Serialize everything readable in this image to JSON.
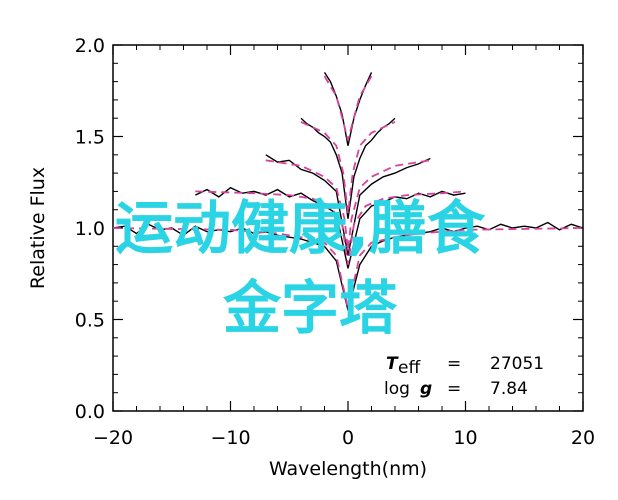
{
  "chart_data": {
    "type": "line",
    "title": "",
    "xlabel": "Wavelength(nm)",
    "ylabel": "Relative Flux",
    "xlim": [
      -20,
      20
    ],
    "ylim": [
      0.0,
      2.0
    ],
    "x_ticks": [
      "−20",
      "−10",
      "0",
      "10",
      "20"
    ],
    "y_ticks": [
      "0.0",
      "0.5",
      "1.0",
      "1.5",
      "2.0"
    ],
    "grid": false,
    "legend": "none",
    "series": [
      {
        "style": "black-solid",
        "segments": [
          {
            "x": [
              -20,
              -19,
              -18,
              -17,
              -16,
              -15,
              -14,
              -13,
              -12,
              -11,
              -10,
              -9,
              -8,
              -7,
              -6,
              -5,
              -4,
              -3,
              -2,
              -1,
              0,
              1,
              2,
              3,
              4,
              5,
              6,
              7,
              8,
              9,
              10,
              11,
              12,
              13,
              14,
              15,
              16,
              17,
              18,
              19,
              20
            ],
            "y": [
              1.0,
              1.01,
              0.97,
              1.02,
              0.99,
              1.0,
              0.96,
              1.01,
              0.98,
              0.99,
              0.98,
              1.0,
              0.97,
              0.98,
              0.96,
              0.95,
              0.94,
              0.92,
              0.9,
              0.82,
              0.55,
              0.8,
              0.9,
              0.93,
              0.95,
              0.96,
              0.97,
              0.98,
              1.0,
              0.98,
              1.0,
              1.01,
              0.99,
              1.02,
              1.0,
              1.01,
              1.0,
              1.03,
              0.99,
              1.02,
              1.0
            ]
          },
          {
            "x": [
              -13,
              -12,
              -11,
              -10,
              -9,
              -8,
              -7,
              -6,
              -5,
              -4,
              -3,
              -2,
              -1,
              0,
              1,
              2,
              3,
              4,
              5,
              6,
              7,
              8,
              9,
              10
            ],
            "y": [
              1.18,
              1.21,
              1.17,
              1.22,
              1.19,
              1.2,
              1.18,
              1.21,
              1.17,
              1.19,
              1.15,
              1.12,
              1.08,
              0.78,
              1.05,
              1.12,
              1.14,
              1.17,
              1.16,
              1.19,
              1.17,
              1.2,
              1.18,
              1.19
            ]
          },
          {
            "x": [
              -7,
              -6,
              -5,
              -4,
              -3,
              -2,
              -1,
              0,
              1,
              2,
              3,
              4,
              5,
              6,
              7
            ],
            "y": [
              1.4,
              1.36,
              1.37,
              1.32,
              1.3,
              1.26,
              1.2,
              0.85,
              1.18,
              1.24,
              1.28,
              1.3,
              1.33,
              1.35,
              1.38
            ]
          },
          {
            "x": [
              -4,
              -3.5,
              -3,
              -2.5,
              -2,
              -1.5,
              -1,
              -0.5,
              0,
              0.5,
              1,
              1.5,
              2,
              2.5,
              3,
              3.5,
              4
            ],
            "y": [
              1.6,
              1.57,
              1.55,
              1.52,
              1.5,
              1.47,
              1.4,
              1.3,
              1.05,
              1.28,
              1.38,
              1.45,
              1.48,
              1.52,
              1.55,
              1.57,
              1.6
            ]
          },
          {
            "x": [
              -2,
              -1.5,
              -1,
              -0.5,
              0,
              0.5,
              1,
              1.5,
              2
            ],
            "y": [
              1.85,
              1.8,
              1.72,
              1.62,
              1.45,
              1.6,
              1.7,
              1.78,
              1.85
            ]
          }
        ]
      },
      {
        "style": "magenta-dashed",
        "segments": [
          {
            "x": [
              -20,
              -10,
              -6,
              -4,
              -2,
              -1,
              0,
              1,
              2,
              4,
              6,
              10,
              20
            ],
            "y": [
              1.0,
              0.99,
              0.97,
              0.95,
              0.92,
              0.85,
              0.56,
              0.85,
              0.92,
              0.95,
              0.97,
              0.99,
              1.0
            ]
          },
          {
            "x": [
              -13,
              -8,
              -5,
              -3,
              -1.5,
              -0.5,
              0,
              0.5,
              1.5,
              3,
              5,
              8,
              10
            ],
            "y": [
              1.2,
              1.19,
              1.18,
              1.16,
              1.12,
              1.02,
              0.8,
              1.02,
              1.12,
              1.16,
              1.18,
              1.19,
              1.2
            ]
          },
          {
            "x": [
              -7,
              -4,
              -2,
              -1,
              -0.3,
              0,
              0.3,
              1,
              2,
              4,
              7
            ],
            "y": [
              1.37,
              1.34,
              1.28,
              1.22,
              1.05,
              0.88,
              1.05,
              1.22,
              1.28,
              1.34,
              1.37
            ]
          },
          {
            "x": [
              -4,
              -2,
              -1,
              -0.4,
              0,
              0.4,
              1,
              2,
              4
            ],
            "y": [
              1.58,
              1.52,
              1.45,
              1.3,
              1.08,
              1.3,
              1.45,
              1.52,
              1.58
            ]
          },
          {
            "x": [
              -2,
              -1,
              -0.4,
              0,
              0.4,
              1,
              2
            ],
            "y": [
              1.83,
              1.72,
              1.58,
              1.48,
              1.58,
              1.72,
              1.83
            ]
          }
        ]
      }
    ],
    "annotations": {
      "teff_symbol": "T",
      "teff_subscript": "eff",
      "teff_eq": "=",
      "teff_value": "27051",
      "logg_symbol": "log",
      "logg_g": "g",
      "logg_eq": "=",
      "logg_value": "7.84"
    },
    "colors": {
      "primary_line": "#000000",
      "model_line": "#d6439c",
      "overlay_text": "#2ad4e4"
    }
  },
  "overlay": {
    "line1": "运动健康,膳食",
    "line2": "金字塔"
  }
}
